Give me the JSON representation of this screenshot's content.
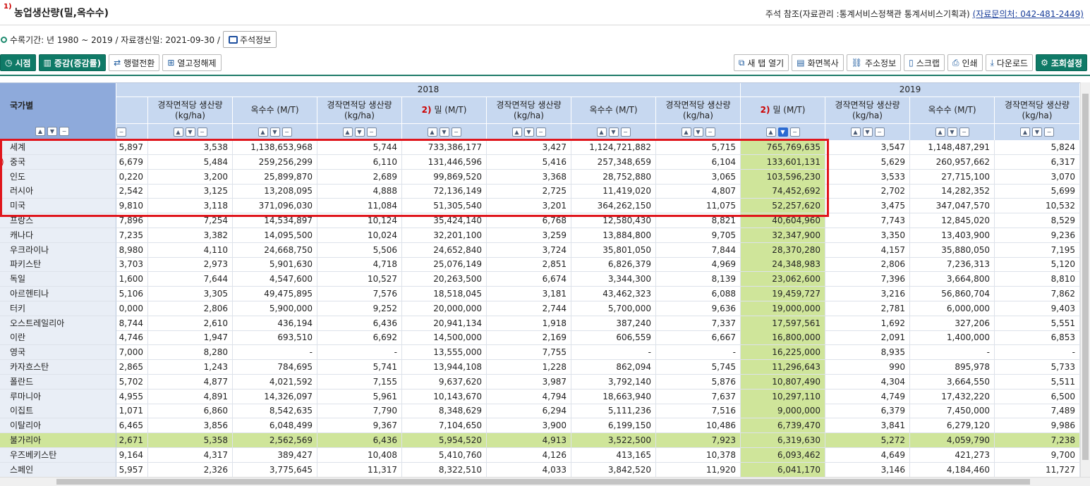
{
  "header": {
    "title_note": "1)",
    "title": "농업생산량(밀,옥수수)",
    "reference": "주석 참조(자료관리 :통계서비스정책관 통계서비스기획과)",
    "contact": "(자료문의처: 042-481-2449)"
  },
  "period": {
    "text": "수록기간: 년 1980 ~ 2019 / 자료갱신일: 2021-09-30 /",
    "note_button": "주석정보"
  },
  "toolbar": {
    "left": [
      {
        "name": "time-button",
        "icon": "clock-icon",
        "label": "시점",
        "style": "green"
      },
      {
        "name": "change-button",
        "icon": "chart-icon",
        "label": "증감(증감률)",
        "style": "green"
      },
      {
        "name": "pivot-button",
        "icon": "pivot-icon",
        "label": "행렬전환",
        "style": "plain"
      },
      {
        "name": "unfix-column-button",
        "icon": "grid-icon",
        "label": "열고정해제",
        "style": "plain"
      }
    ],
    "right": [
      {
        "name": "new-tab-button",
        "icon": "new-tab-icon",
        "label": "새 탭 열기",
        "style": "plain"
      },
      {
        "name": "copy-screen-button",
        "icon": "copy-icon",
        "label": "화면복사",
        "style": "plain"
      },
      {
        "name": "address-info-button",
        "icon": "link-icon",
        "label": "주소정보",
        "style": "plain"
      },
      {
        "name": "scrap-button",
        "icon": "bookmark-icon",
        "label": "스크랩",
        "style": "plain"
      },
      {
        "name": "print-button",
        "icon": "print-icon",
        "label": "인쇄",
        "style": "plain"
      },
      {
        "name": "download-button",
        "icon": "download-icon",
        "label": "다운로드",
        "style": "plain"
      },
      {
        "name": "query-settings-button",
        "icon": "gear-icon",
        "label": "조회설정",
        "style": "green"
      }
    ]
  },
  "table": {
    "corner_label": "국가별",
    "year_2018": "2018",
    "year_2019": "2019",
    "col_headers": [
      "",
      "경작면적당 생산량 (kg/ha)",
      "옥수수 (M/T)",
      "경작면적당 생산량 (kg/ha)",
      "밀 (M/T)",
      "경작면적당 생산량 (kg/ha)",
      "옥수수 (M/T)",
      "경작면적당 생산량 (kg/ha)",
      "밀 (M/T)",
      "경작면적당 생산량 (kg/ha)",
      "옥수수 (M/T)",
      "경작면적당 생산량 (kg/ha)"
    ],
    "note_2": "2)",
    "rows": [
      {
        "country": "세계",
        "note": "",
        "values": [
          "5,897",
          "3,538",
          "1,138,653,968",
          "5,744",
          "733,386,177",
          "3,427",
          "1,124,721,882",
          "5,715",
          "765,769,635",
          "3,547",
          "1,148,487,291",
          "5,824"
        ]
      },
      {
        "country": "중국",
        "note": ")",
        "values": [
          "6,679",
          "5,484",
          "259,256,299",
          "6,110",
          "131,446,596",
          "5,416",
          "257,348,659",
          "6,104",
          "133,601,131",
          "5,629",
          "260,957,662",
          "6,317"
        ]
      },
      {
        "country": "인도",
        "note": "",
        "values": [
          "0,220",
          "3,200",
          "25,899,870",
          "2,689",
          "99,869,520",
          "3,368",
          "28,752,880",
          "3,065",
          "103,596,230",
          "3,533",
          "27,715,100",
          "3,070"
        ]
      },
      {
        "country": "러시아",
        "note": "",
        "values": [
          "2,542",
          "3,125",
          "13,208,095",
          "4,888",
          "72,136,149",
          "2,725",
          "11,419,020",
          "4,807",
          "74,452,692",
          "2,702",
          "14,282,352",
          "5,699"
        ]
      },
      {
        "country": "미국",
        "note": "",
        "values": [
          "9,810",
          "3,118",
          "371,096,030",
          "11,084",
          "51,305,540",
          "3,201",
          "364,262,150",
          "11,075",
          "52,257,620",
          "3,475",
          "347,047,570",
          "10,532"
        ]
      },
      {
        "country": "프랑스",
        "note": "",
        "values": [
          "7,896",
          "7,254",
          "14,534,897",
          "10,124",
          "35,424,140",
          "6,768",
          "12,580,430",
          "8,821",
          "40,604,960",
          "7,743",
          "12,845,020",
          "8,529"
        ]
      },
      {
        "country": "캐나다",
        "note": "",
        "values": [
          "7,235",
          "3,382",
          "14,095,500",
          "10,024",
          "32,201,100",
          "3,259",
          "13,884,800",
          "9,705",
          "32,347,900",
          "3,350",
          "13,403,900",
          "9,236"
        ]
      },
      {
        "country": "우크라이나",
        "note": "",
        "values": [
          "8,980",
          "4,110",
          "24,668,750",
          "5,506",
          "24,652,840",
          "3,724",
          "35,801,050",
          "7,844",
          "28,370,280",
          "4,157",
          "35,880,050",
          "7,195"
        ]
      },
      {
        "country": "파키스탄",
        "note": "",
        "values": [
          "3,703",
          "2,973",
          "5,901,630",
          "4,718",
          "25,076,149",
          "2,851",
          "6,826,379",
          "4,969",
          "24,348,983",
          "2,806",
          "7,236,313",
          "5,120"
        ]
      },
      {
        "country": "독일",
        "note": "",
        "values": [
          "1,600",
          "7,644",
          "4,547,600",
          "10,527",
          "20,263,500",
          "6,674",
          "3,344,300",
          "8,139",
          "23,062,600",
          "7,396",
          "3,664,800",
          "8,810"
        ]
      },
      {
        "country": "아르헨티나",
        "note": "",
        "values": [
          "5,106",
          "3,305",
          "49,475,895",
          "7,576",
          "18,518,045",
          "3,181",
          "43,462,323",
          "6,088",
          "19,459,727",
          "3,216",
          "56,860,704",
          "7,862"
        ]
      },
      {
        "country": "터키",
        "note": "",
        "values": [
          "0,000",
          "2,806",
          "5,900,000",
          "9,252",
          "20,000,000",
          "2,744",
          "5,700,000",
          "9,636",
          "19,000,000",
          "2,781",
          "6,000,000",
          "9,403"
        ]
      },
      {
        "country": "오스트레일리아",
        "note": "",
        "values": [
          "8,744",
          "2,610",
          "436,194",
          "6,436",
          "20,941,134",
          "1,918",
          "387,240",
          "7,337",
          "17,597,561",
          "1,692",
          "327,206",
          "5,551"
        ]
      },
      {
        "country": "이란",
        "note": "",
        "values": [
          "4,746",
          "1,947",
          "693,510",
          "6,692",
          "14,500,000",
          "2,169",
          "606,559",
          "6,667",
          "16,800,000",
          "2,091",
          "1,400,000",
          "6,853"
        ]
      },
      {
        "country": "영국",
        "note": "",
        "values": [
          "7,000",
          "8,280",
          "-",
          "-",
          "13,555,000",
          "7,755",
          "-",
          "-",
          "16,225,000",
          "8,935",
          "-",
          "-"
        ]
      },
      {
        "country": "카자흐스탄",
        "note": "",
        "values": [
          "2,865",
          "1,243",
          "784,695",
          "5,741",
          "13,944,108",
          "1,228",
          "862,094",
          "5,745",
          "11,296,643",
          "990",
          "895,978",
          "5,733"
        ]
      },
      {
        "country": "폴란드",
        "note": "",
        "values": [
          "5,702",
          "4,877",
          "4,021,592",
          "7,155",
          "9,637,620",
          "3,987",
          "3,792,140",
          "5,876",
          "10,807,490",
          "4,304",
          "3,664,550",
          "5,511"
        ]
      },
      {
        "country": "루마니아",
        "note": "",
        "values": [
          "4,955",
          "4,891",
          "14,326,097",
          "5,961",
          "10,143,670",
          "4,794",
          "18,663,940",
          "7,637",
          "10,297,110",
          "4,749",
          "17,432,220",
          "6,500"
        ]
      },
      {
        "country": "이집트",
        "note": "",
        "values": [
          "1,071",
          "6,860",
          "8,542,635",
          "7,790",
          "8,348,629",
          "6,294",
          "5,111,236",
          "7,516",
          "9,000,000",
          "6,379",
          "7,450,000",
          "7,489"
        ]
      },
      {
        "country": "이탈리아",
        "note": "",
        "values": [
          "6,465",
          "3,856",
          "6,048,499",
          "9,367",
          "7,104,650",
          "3,900",
          "6,199,150",
          "10,486",
          "6,739,470",
          "3,841",
          "6,279,120",
          "9,986"
        ]
      },
      {
        "country": "불가리아",
        "note": "",
        "values": [
          "2,671",
          "5,358",
          "2,562,569",
          "6,436",
          "5,954,520",
          "4,913",
          "3,522,500",
          "7,923",
          "6,319,630",
          "5,272",
          "4,059,790",
          "7,238"
        ]
      },
      {
        "country": "우즈베키스탄",
        "note": "",
        "values": [
          "9,164",
          "4,317",
          "389,427",
          "10,408",
          "5,410,760",
          "4,126",
          "413,165",
          "10,378",
          "6,093,462",
          "4,649",
          "421,273",
          "9,700"
        ]
      },
      {
        "country": "스페인",
        "note": "",
        "values": [
          "5,957",
          "2,326",
          "3,775,645",
          "11,317",
          "8,322,510",
          "4,033",
          "3,842,520",
          "11,920",
          "6,041,170",
          "3,146",
          "4,184,460",
          "11,727"
        ]
      }
    ],
    "highlight_row": "불가리아",
    "highlight_col_index": 8,
    "colors": {
      "header": "#c7d8f0",
      "corner": "#8eaadb",
      "highlight": "#cfe59a",
      "selection_box": "#e0151c",
      "accent": "#0f7a67"
    }
  }
}
